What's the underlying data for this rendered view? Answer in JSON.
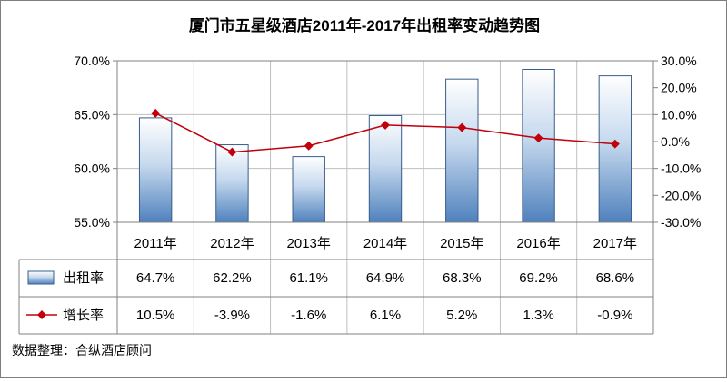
{
  "chart_data": {
    "type": "bar",
    "title": "厦门市五星级酒店2011年-2017年出租率变动趋势图",
    "categories": [
      "2011年",
      "2012年",
      "2013年",
      "2014年",
      "2015年",
      "2016年",
      "2017年"
    ],
    "series": [
      {
        "name": "出租率",
        "type": "bar",
        "axis": "left",
        "values": [
          64.7,
          62.2,
          61.1,
          64.9,
          68.3,
          69.2,
          68.6
        ],
        "labels": [
          "64.7%",
          "62.2%",
          "61.1%",
          "64.9%",
          "68.3%",
          "69.2%",
          "68.6%"
        ]
      },
      {
        "name": "增长率",
        "type": "line",
        "axis": "right",
        "values": [
          10.5,
          -3.9,
          -1.6,
          6.1,
          5.2,
          1.3,
          -0.9
        ],
        "labels": [
          "10.5%",
          "-3.9%",
          "-1.6%",
          "6.1%",
          "5.2%",
          "1.3%",
          "-0.9%"
        ]
      }
    ],
    "y_left": {
      "min": 55,
      "max": 70,
      "ticks": [
        {
          "value": 70,
          "label": "70.0%"
        },
        {
          "value": 65,
          "label": "65.0%"
        },
        {
          "value": 60,
          "label": "60.0%"
        },
        {
          "value": 55,
          "label": "55.0%"
        }
      ]
    },
    "y_right": {
      "min": -30,
      "max": 30,
      "ticks": [
        {
          "value": 30,
          "label": "30.0%"
        },
        {
          "value": 20,
          "label": "20.0%"
        },
        {
          "value": 10,
          "label": "10.0%"
        },
        {
          "value": 0,
          "label": "0.0%"
        },
        {
          "value": -10,
          "label": "-10.0%"
        },
        {
          "value": -20,
          "label": "-20.0%"
        },
        {
          "value": -30,
          "label": "-30.0%"
        }
      ]
    },
    "grid": true,
    "legend": "data-table",
    "colors": {
      "bar_top": "#ffffff",
      "bar_bottom": "#4f81bd",
      "bar_edge": "#385d8a",
      "line": "#c0000a",
      "grid": "#bfbfbf"
    }
  },
  "footer": {
    "source": "数据整理：合纵酒店顾问"
  }
}
